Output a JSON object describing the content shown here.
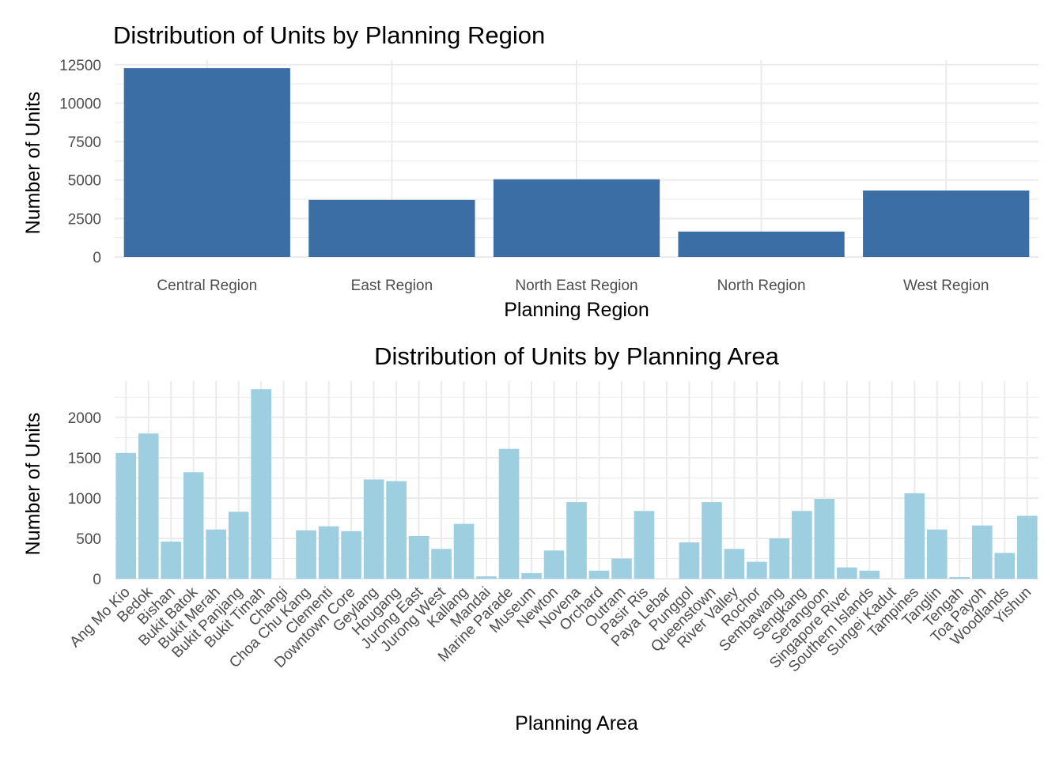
{
  "chart_data": [
    {
      "type": "bar",
      "title": "Distribution of Units by Planning Region",
      "xlabel": "Planning Region",
      "ylabel": "Number of Units",
      "ylim": [
        0,
        12800
      ],
      "yticks": [
        0,
        2500,
        5000,
        7500,
        10000,
        12500
      ],
      "grid": true,
      "bar_color": "#3a6ea5",
      "categories": [
        "Central Region",
        "East Region",
        "North East Region",
        "North Region",
        "West Region"
      ],
      "values": [
        12280,
        3710,
        5050,
        1650,
        4320
      ]
    },
    {
      "type": "bar",
      "title": "Distribution of Units by Planning Area",
      "xlabel": "Planning Area",
      "ylabel": "Number of Units",
      "ylim": [
        0,
        2450
      ],
      "yticks": [
        0,
        500,
        1000,
        1500,
        2000
      ],
      "grid": true,
      "bar_color": "#9ecfe0",
      "categories": [
        "Ang Mo Kio",
        "Bedok",
        "Bishan",
        "Bukit Batok",
        "Bukit Merah",
        "Bukit Panjang",
        "Bukit Timah",
        "Changi",
        "Choa Chu Kang",
        "Clementi",
        "Downtown Core",
        "Geylang",
        "Hougang",
        "Jurong East",
        "Jurong West",
        "Kallang",
        "Mandai",
        "Marine Parade",
        "Museum",
        "Newton",
        "Novena",
        "Orchard",
        "Outram",
        "Pasir Ris",
        "Paya Lebar",
        "Punggol",
        "Queenstown",
        "River Valley",
        "Rochor",
        "Sembawang",
        "Sengkang",
        "Serangoon",
        "Singapore River",
        "Southern Islands",
        "Sungei Kadut",
        "Tampines",
        "Tanglin",
        "Tengah",
        "Toa Payoh",
        "Woodlands",
        "Yishun"
      ],
      "values": [
        1560,
        1800,
        460,
        1320,
        610,
        830,
        2350,
        0,
        600,
        650,
        590,
        1230,
        1210,
        530,
        370,
        680,
        30,
        1610,
        70,
        350,
        950,
        100,
        250,
        840,
        0,
        450,
        950,
        370,
        210,
        500,
        840,
        990,
        140,
        100,
        0,
        1060,
        610,
        20,
        660,
        320,
        780
      ]
    }
  ]
}
